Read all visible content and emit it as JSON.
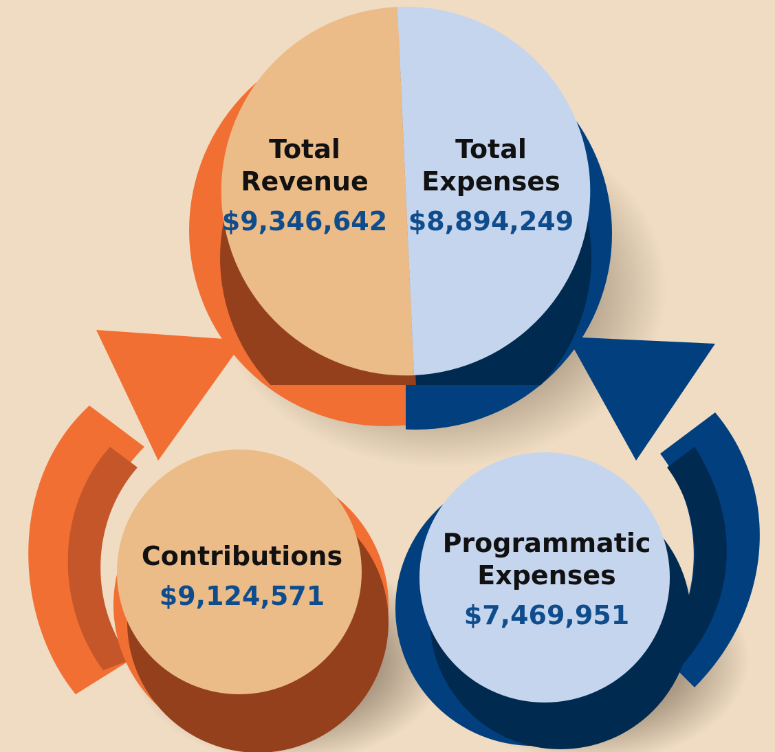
{
  "nodes": [
    {
      "label": [
        "Total",
        "Revenue"
      ],
      "amount": "$9,346,642"
    },
    {
      "label": [
        "Total",
        "Expenses"
      ],
      "amount": "$8,894,249"
    },
    {
      "label": [
        "Contributions"
      ],
      "amount": "$9,124,571"
    },
    {
      "label": [
        "Programmatic",
        "Expenses"
      ],
      "amount": "$7,469,951"
    }
  ]
}
